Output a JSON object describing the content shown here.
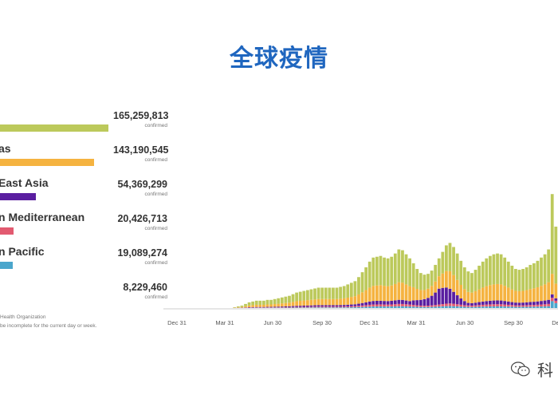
{
  "page": {
    "title": "全球疫情"
  },
  "regions": [
    {
      "name": "",
      "total": "165,259,813",
      "confirmed_label": "confirmed",
      "share": 1.0,
      "color": "#bcc95b"
    },
    {
      "name": "as",
      "total": "143,190,545",
      "confirmed_label": "confirmed",
      "share": 0.866,
      "color": "#f5b340"
    },
    {
      "name": "East Asia",
      "total": "54,369,299",
      "confirmed_label": "confirmed",
      "share": 0.329,
      "color": "#5a1ea0"
    },
    {
      "name": "n Mediterranean",
      "total": "20,426,713",
      "confirmed_label": "confirmed",
      "share": 0.124,
      "color": "#e25a70"
    },
    {
      "name": "n Pacific",
      "total": "19,089,274",
      "confirmed_label": "confirmed",
      "share": 0.116,
      "color": "#4aa6cc"
    },
    {
      "name": "",
      "total": "8,229,460",
      "confirmed_label": "confirmed",
      "share": 0.05,
      "color": "#2f8f8f"
    }
  ],
  "footnotes": [
    "Health Organization",
    "be incomplete for the current day or week."
  ],
  "chart_data": {
    "type": "bar",
    "stacked": true,
    "x_ticks": [
      "Dec 31",
      "Mar 31",
      "Jun 30",
      "Sep 30",
      "Dec 31",
      "Mar 31",
      "Jun 30",
      "Sep 30",
      "De"
    ],
    "series_colors": {
      "americas": "#bcc95b",
      "europe": "#f5b340",
      "se_asia": "#5a1ea0",
      "e_med": "#e25a70",
      "w_pacific": "#4aa6cc"
    },
    "weekly_totals_relative": [
      0.0,
      0.0,
      0.0,
      0.0,
      0.0,
      0.0,
      0.0,
      0.0,
      0.0,
      0.0,
      0.0,
      0.01,
      0.02,
      0.03,
      0.05,
      0.07,
      0.08,
      0.09,
      0.09,
      0.09,
      0.1,
      0.1,
      0.11,
      0.12,
      0.13,
      0.14,
      0.15,
      0.17,
      0.19,
      0.2,
      0.21,
      0.22,
      0.23,
      0.24,
      0.25,
      0.25,
      0.25,
      0.25,
      0.25,
      0.25,
      0.26,
      0.27,
      0.29,
      0.31,
      0.33,
      0.38,
      0.44,
      0.5,
      0.57,
      0.62,
      0.63,
      0.64,
      0.62,
      0.61,
      0.63,
      0.67,
      0.72,
      0.71,
      0.66,
      0.61,
      0.55,
      0.48,
      0.43,
      0.41,
      0.42,
      0.46,
      0.53,
      0.61,
      0.69,
      0.77,
      0.8,
      0.75,
      0.67,
      0.58,
      0.5,
      0.45,
      0.43,
      0.47,
      0.52,
      0.57,
      0.61,
      0.64,
      0.66,
      0.67,
      0.66,
      0.62,
      0.57,
      0.52,
      0.48,
      0.47,
      0.48,
      0.5,
      0.53,
      0.55,
      0.58,
      0.62,
      0.66,
      0.72,
      1.4,
      1.0
    ]
  },
  "watermark": {
    "text": "科",
    "icon": "wechat-icon"
  }
}
